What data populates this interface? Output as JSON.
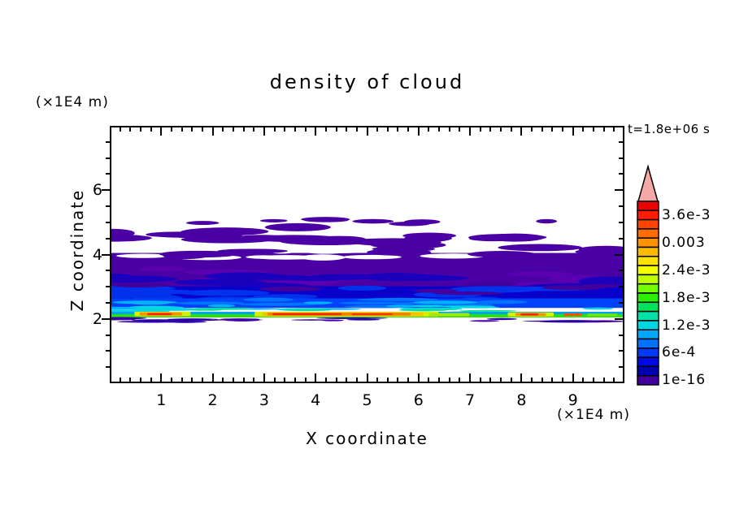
{
  "figure": {
    "title": "density of cloud",
    "time_label": "t=1.8e+06 s"
  },
  "x_axis": {
    "label": "X coordinate",
    "unit": "(×1E4 m)",
    "range": [
      0,
      10
    ],
    "major_ticks": [
      1,
      2,
      3,
      4,
      5,
      6,
      7,
      8,
      9
    ],
    "minor_step": 0.2
  },
  "z_axis": {
    "label": "Z coordinate",
    "unit": "(×1E4 m)",
    "range": [
      0,
      8
    ],
    "major_ticks": [
      2,
      4,
      6
    ],
    "minor_step": 0.5
  },
  "chart_data": {
    "type": "heatmap",
    "title": "density of cloud",
    "xlabel": "X coordinate (×1E4 m)",
    "ylabel": "Z coordinate (×1E4 m)",
    "xlim": [
      0,
      10
    ],
    "ylim": [
      0,
      8
    ],
    "time_annotation": "t=1.8e+06 s",
    "grid": false,
    "description": "Filled-contour cloud density field: sparse violet cloud patches near Z=5, broken violet decks Z=4-4.9, dense violet-to-blue layer Z=2.9-4, blue/cyan layer Z=2.3-2.9, bright green/yellow/red maximum streak just above sharp cloud base at Z=2, thin dark fragments below the base, clear air elsewhere.",
    "colorbar": {
      "tick_labels": [
        "3.6e-3",
        "0.003",
        "2.4e-3",
        "1.8e-3",
        "1.2e-3",
        "6e-4",
        "1e-16"
      ],
      "label_start_index": 1,
      "label_step": 3,
      "level_values_top_to_bottom": [
        0.0038,
        0.0036,
        0.0034,
        0.0032,
        0.003,
        0.0028,
        0.0026,
        0.0024,
        0.0022,
        0.002,
        0.0018,
        0.0016,
        0.0014,
        0.0012,
        0.001,
        0.0008,
        0.0006,
        0.0004,
        0.0002,
        1e-16
      ],
      "colors_top_to_bottom": [
        "#ee0000",
        "#ff1c00",
        "#ff4400",
        "#ff6c00",
        "#ff9200",
        "#ffba00",
        "#ffe200",
        "#f4ff00",
        "#c0ff00",
        "#74ff00",
        "#2af000",
        "#00e25c",
        "#00e2a6",
        "#00d6e2",
        "#00a8ff",
        "#0072ff",
        "#003af8",
        "#0008e4",
        "#0000b2",
        "#4200a0"
      ],
      "overflow_color": "#f4a8a8"
    },
    "cloud_layers": [
      {
        "seed": 11,
        "color": "#4a00a4",
        "z": [
          4.94,
          5.14
        ],
        "count": 8,
        "w": [
          0.35,
          1.1
        ],
        "h": [
          0.1,
          0.17
        ]
      },
      {
        "seed": 22,
        "color": "#4a00a4",
        "z": [
          4.5,
          4.9
        ],
        "count": 12,
        "w": [
          0.8,
          1.9
        ],
        "h": [
          0.16,
          0.3
        ]
      },
      {
        "seed": 33,
        "color": "#4a00a4",
        "z": [
          4.12,
          4.55
        ],
        "count": 10,
        "w": [
          0.7,
          2.0
        ],
        "h": [
          0.15,
          0.28
        ]
      },
      {
        "seed": 44,
        "color": "#4a00a4",
        "z": [
          3.58,
          4.05
        ],
        "rect": 1
      },
      {
        "seed": 55,
        "color": "#ffffff",
        "z": [
          3.9,
          4.16
        ],
        "count": 11,
        "w": [
          0.5,
          1.6
        ],
        "h": [
          0.1,
          0.2
        ]
      },
      {
        "seed": 66,
        "color": "#4a00a4",
        "z": [
          3.96,
          4.3
        ],
        "count": 12,
        "w": [
          0.6,
          1.9
        ],
        "h": [
          0.12,
          0.24
        ]
      },
      {
        "seed": 77,
        "color": "#4a00a4",
        "z": [
          2.92,
          3.62
        ],
        "rect": 1
      },
      {
        "seed": 88,
        "color": "#5a00b0",
        "z": [
          3.02,
          3.55
        ],
        "count": 10,
        "w": [
          0.8,
          2.0
        ],
        "h": [
          0.12,
          0.26
        ]
      },
      {
        "seed": 99,
        "color": "#1a00bc",
        "z": [
          2.88,
          3.42
        ],
        "count": 13,
        "w": [
          0.8,
          2.2
        ],
        "h": [
          0.14,
          0.3
        ]
      },
      {
        "seed": 110,
        "color": "#0a00cc",
        "z": [
          2.58,
          3.0
        ],
        "rect": 1
      },
      {
        "seed": 121,
        "color": "#0032ee",
        "z": [
          2.58,
          2.96
        ],
        "count": 14,
        "w": [
          0.7,
          2.0
        ],
        "h": [
          0.12,
          0.22
        ]
      },
      {
        "seed": 132,
        "color": "#42009c",
        "z": [
          2.76,
          3.1
        ],
        "count": 7,
        "w": [
          0.6,
          1.5
        ],
        "h": [
          0.1,
          0.18
        ]
      },
      {
        "seed": 143,
        "color": "#0042fa",
        "z": [
          2.32,
          2.62
        ],
        "rect": 1
      },
      {
        "seed": 154,
        "color": "#0074ff",
        "z": [
          2.34,
          2.6
        ],
        "count": 12,
        "w": [
          0.6,
          1.7
        ],
        "h": [
          0.07,
          0.14
        ]
      },
      {
        "seed": 165,
        "color": "#00b2ff",
        "z": [
          2.28,
          2.52
        ],
        "count": 10,
        "w": [
          0.5,
          1.5
        ],
        "h": [
          0.05,
          0.11
        ]
      },
      {
        "seed": 176,
        "color": "#00d6e2",
        "z": [
          2.16,
          2.4
        ],
        "count": 12,
        "w": [
          0.6,
          1.8
        ],
        "h": [
          0.05,
          0.1
        ]
      },
      {
        "seed": 187,
        "color": "#00e29a",
        "z": [
          2.12,
          2.3
        ],
        "count": 9,
        "w": [
          0.5,
          1.3
        ],
        "h": [
          0.04,
          0.08
        ]
      },
      {
        "seed": 198,
        "color": "#00a2f4",
        "z": [
          2.04,
          2.2
        ],
        "rect": 1
      },
      {
        "seed": 209,
        "color": "#2ae400",
        "z": [
          2.02,
          2.12
        ],
        "rect": 1
      }
    ],
    "base_streaks": [
      {
        "x": [
          0.45,
          1.55
        ],
        "z": [
          2.06,
          2.2
        ],
        "color": "#d8f000"
      },
      {
        "x": [
          0.55,
          1.38
        ],
        "z": [
          2.08,
          2.18
        ],
        "color": "#ff9000"
      },
      {
        "x": [
          0.7,
          1.18
        ],
        "z": [
          2.09,
          2.16
        ],
        "color": "#ff2000"
      },
      {
        "x": [
          2.8,
          6.4
        ],
        "z": [
          2.05,
          2.2
        ],
        "color": "#d8f000"
      },
      {
        "x": [
          2.95,
          6.1
        ],
        "z": [
          2.07,
          2.18
        ],
        "color": "#ffc000"
      },
      {
        "x": [
          3.05,
          5.85
        ],
        "z": [
          2.08,
          2.17
        ],
        "color": "#ff7800"
      },
      {
        "x": [
          3.15,
          4.5
        ],
        "z": [
          2.09,
          2.155
        ],
        "color": "#ff2000"
      },
      {
        "x": [
          4.7,
          5.5
        ],
        "z": [
          2.09,
          2.15
        ],
        "color": "#ff3000"
      },
      {
        "x": [
          6.2,
          7.0
        ],
        "z": [
          2.06,
          2.16
        ],
        "color": "#a8e800"
      },
      {
        "x": [
          7.75,
          8.65
        ],
        "z": [
          2.05,
          2.18
        ],
        "color": "#d8f000"
      },
      {
        "x": [
          7.9,
          8.5
        ],
        "z": [
          2.07,
          2.16
        ],
        "color": "#ff9000"
      },
      {
        "x": [
          8.0,
          8.35
        ],
        "z": [
          2.08,
          2.15
        ],
        "color": "#ff2000"
      },
      {
        "x": [
          8.85,
          9.2
        ],
        "z": [
          2.07,
          2.15
        ],
        "color": "#ff5000"
      },
      {
        "x": [
          9.3,
          9.9
        ],
        "z": [
          2.06,
          2.14
        ],
        "color": "#70e800"
      }
    ],
    "subbase_fragments": [
      {
        "seed": 220,
        "color": "#2a00a8",
        "z": [
          1.86,
          2.0
        ],
        "count": 15,
        "w": [
          0.5,
          1.6
        ],
        "h": [
          0.04,
          0.08
        ]
      },
      {
        "seed": 231,
        "color": "#4a00a4",
        "z": [
          1.88,
          2.0
        ],
        "count": 6,
        "w": [
          0.4,
          1.0
        ],
        "h": [
          0.04,
          0.07
        ]
      }
    ]
  }
}
